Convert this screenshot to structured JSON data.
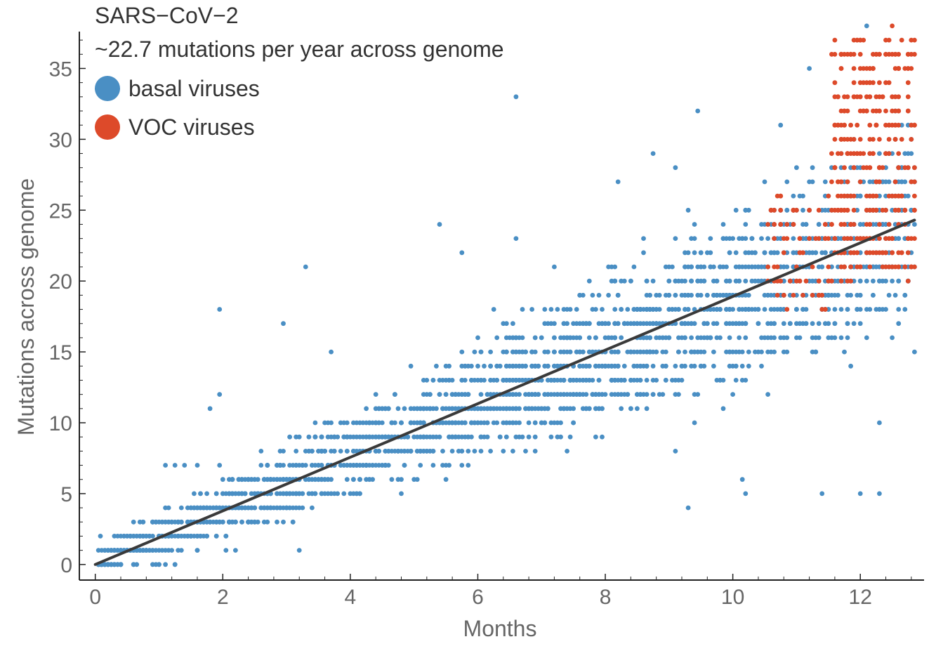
{
  "chart_data": {
    "type": "scatter",
    "title": "",
    "xlabel": "Months",
    "ylabel": "Mutations across genome",
    "xlim": [
      -0.25,
      13.0
    ],
    "ylim": [
      -1.1,
      37.6
    ],
    "xticks": [
      0,
      2,
      4,
      6,
      8,
      10,
      12
    ],
    "yticks": [
      0,
      5,
      10,
      15,
      20,
      25,
      30,
      35
    ],
    "legend_placement": "top-left",
    "legend": {
      "lines": [
        "SARS−CoV−2",
        "~22.7 mutations per year across genome"
      ],
      "entries": [
        {
          "label": "basal viruses",
          "color": "#4a8fc4"
        },
        {
          "label": "VOC viruses",
          "color": "#dd4a2a"
        }
      ]
    },
    "fit_line": {
      "x": [
        0.0,
        12.85
      ],
      "y": [
        0.0,
        24.3
      ],
      "color": "#3a3a3a",
      "slope_per_year": 22.7
    },
    "series": [
      {
        "name": "basal viruses",
        "color": "#4a8fc4",
        "x_range": [
          0.05,
          12.85
        ],
        "y_range": [
          0,
          38
        ],
        "trend": "approximately linear, centered on fit line with spread of about ±5 mutations",
        "sample_points": [
          [
            0.08,
            2
          ],
          [
            0.08,
            0
          ],
          [
            0.3,
            0
          ],
          [
            0.65,
            0
          ],
          [
            0.65,
            1
          ],
          [
            0.7,
            3
          ],
          [
            0.95,
            0
          ],
          [
            1.0,
            0
          ],
          [
            1.1,
            7
          ],
          [
            1.25,
            7
          ],
          [
            1.4,
            7
          ],
          [
            1.6,
            7
          ],
          [
            1.8,
            11
          ],
          [
            1.95,
            12
          ],
          [
            1.95,
            18
          ],
          [
            2.05,
            1
          ],
          [
            2.2,
            1
          ],
          [
            3.2,
            1
          ],
          [
            3.3,
            21
          ],
          [
            2.95,
            17
          ],
          [
            3.7,
            15
          ],
          [
            4.8,
            5
          ],
          [
            5.4,
            24
          ],
          [
            5.75,
            22
          ],
          [
            6.6,
            33
          ],
          [
            6.6,
            23
          ],
          [
            7.2,
            21
          ],
          [
            8.2,
            27
          ],
          [
            8.75,
            29
          ],
          [
            9.1,
            28
          ],
          [
            9.3,
            4
          ],
          [
            9.45,
            32
          ],
          [
            9.1,
            8
          ],
          [
            10.15,
            6
          ],
          [
            10.2,
            5
          ],
          [
            10.75,
            31
          ],
          [
            11.2,
            35
          ],
          [
            11.4,
            5
          ],
          [
            12.0,
            5
          ],
          [
            12.3,
            5
          ],
          [
            12.3,
            10
          ],
          [
            12.1,
            38
          ],
          [
            12.85,
            15
          ]
        ]
      },
      {
        "name": "VOC viruses",
        "color": "#dd4a2a",
        "x_range": [
          10.55,
          12.85
        ],
        "y_range": [
          18,
          38
        ],
        "sample_points": [
          [
            10.6,
            25
          ],
          [
            11.0,
            25
          ],
          [
            11.4,
            18
          ],
          [
            11.6,
            31
          ],
          [
            11.8,
            32
          ],
          [
            11.95,
            37
          ],
          [
            12.1,
            33
          ],
          [
            12.2,
            35
          ],
          [
            12.3,
            36
          ],
          [
            12.4,
            34
          ],
          [
            12.5,
            38
          ],
          [
            12.6,
            35
          ],
          [
            12.8,
            37
          ],
          [
            12.85,
            25
          ]
        ]
      }
    ]
  }
}
